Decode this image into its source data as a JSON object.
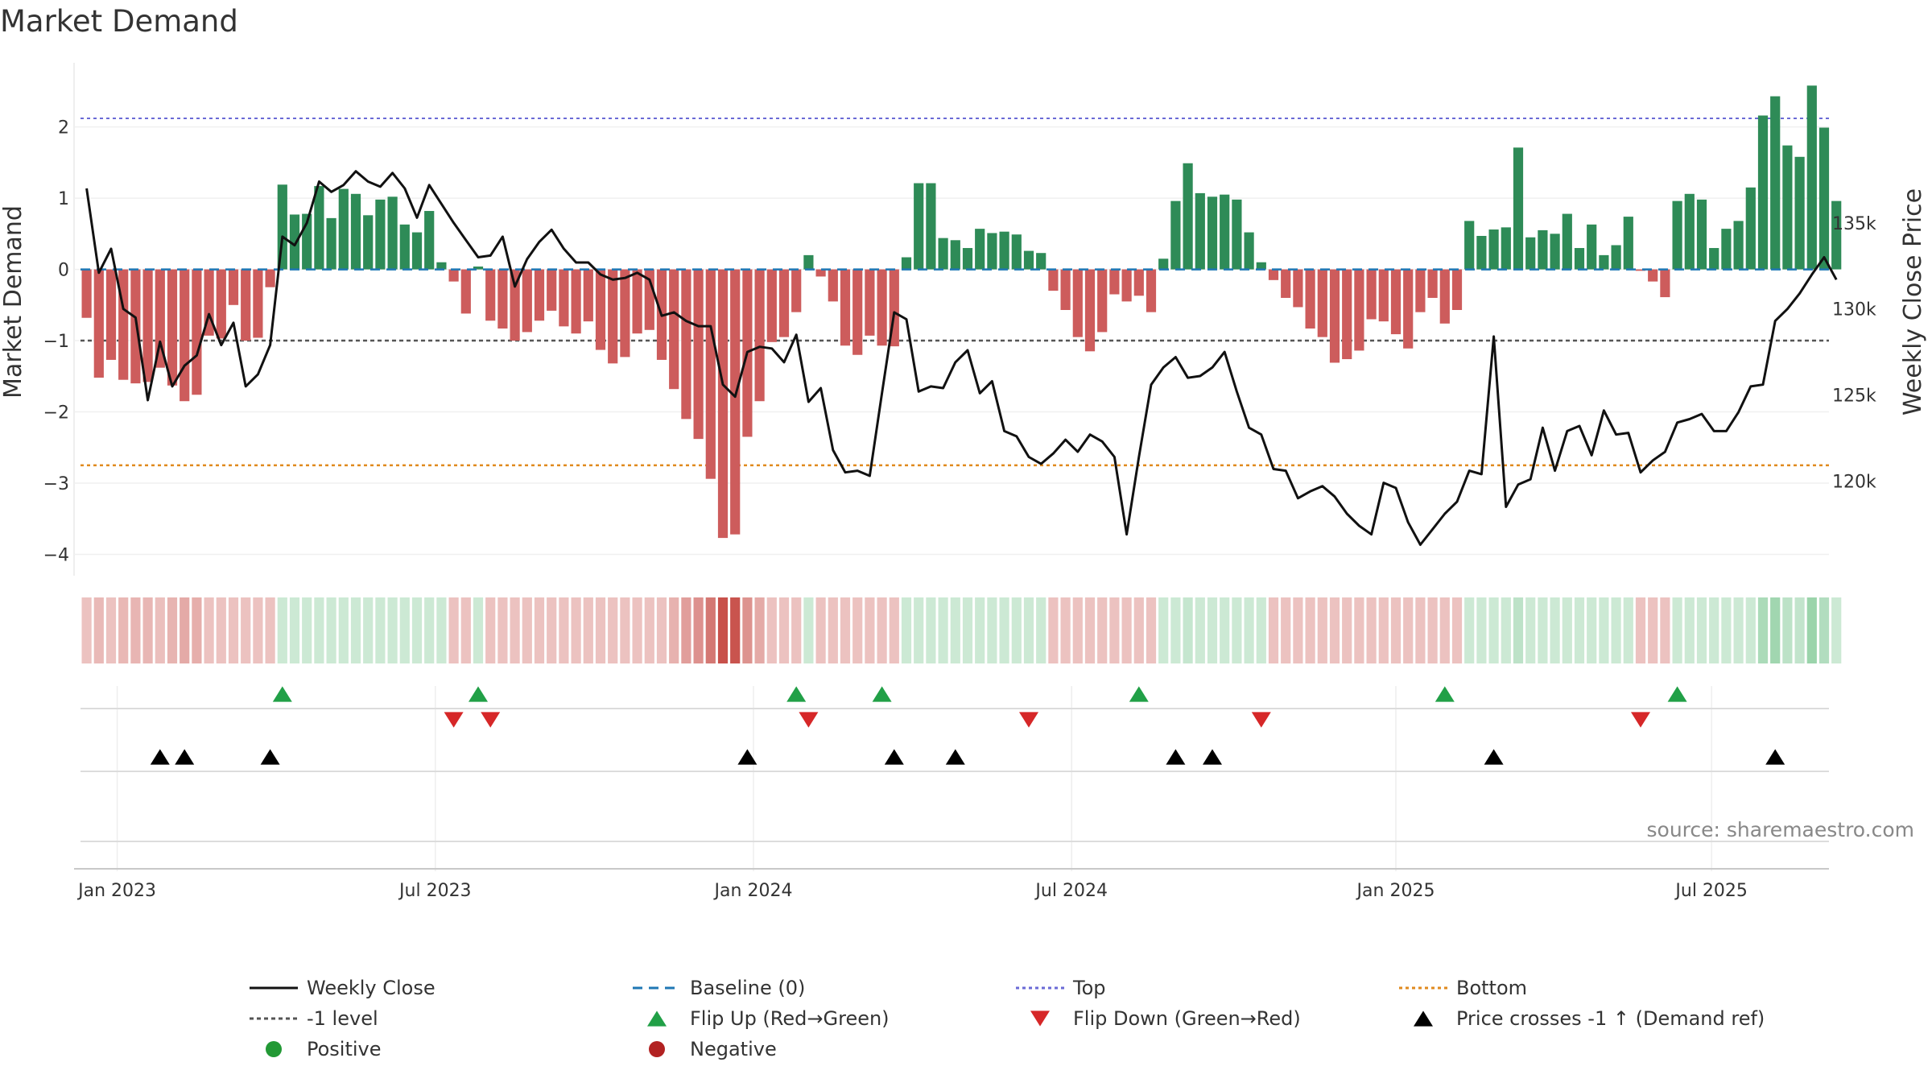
{
  "chart_data": {
    "type": "bar+line",
    "title": "Market Demand",
    "ylabel_left": "Market Demand",
    "ylabel_right": "Weekly Close Price",
    "source": "source: sharemaestro.com",
    "left_axis": {
      "ylim": [
        -4.3,
        2.9
      ],
      "ticks": [
        {
          "v": 2,
          "label": "2"
        },
        {
          "v": 1,
          "label": "1"
        },
        {
          "v": 0,
          "label": "0"
        },
        {
          "v": -1,
          "label": "−1"
        },
        {
          "v": -2,
          "label": "−2"
        },
        {
          "v": -3,
          "label": "−3"
        },
        {
          "v": -4,
          "label": "−4"
        }
      ]
    },
    "right_axis": {
      "ylim": [
        114500,
        144300
      ],
      "ticks": [
        {
          "v": 135000,
          "label": "135k"
        },
        {
          "v": 130000,
          "label": "130k"
        },
        {
          "v": 125000,
          "label": "125k"
        },
        {
          "v": 120000,
          "label": "120k"
        }
      ]
    },
    "x_ticks": [
      {
        "w": 3,
        "label": "Jan 2023"
      },
      {
        "w": 29,
        "label": "Jul 2023"
      },
      {
        "w": 55,
        "label": "Jan 2024"
      },
      {
        "w": 81,
        "label": "Jul 2024"
      },
      {
        "w": 107.5,
        "label": "Jan 2025"
      },
      {
        "w": 133.3,
        "label": "Jul 2025"
      }
    ],
    "reference_lines": {
      "top": 2.12,
      "bottom": -2.75,
      "minus_one": -1,
      "baseline": 0
    },
    "market_demand": [
      -0.68,
      -1.52,
      -1.27,
      -1.55,
      -1.6,
      -1.58,
      -1.38,
      -1.63,
      -1.85,
      -1.76,
      -0.93,
      -0.97,
      -0.5,
      -1.0,
      -0.96,
      -0.25,
      1.19,
      0.77,
      0.78,
      1.17,
      0.72,
      1.13,
      1.06,
      0.76,
      0.98,
      1.02,
      0.63,
      0.52,
      0.82,
      0.1,
      -0.17,
      -0.62,
      0.04,
      -0.72,
      -0.83,
      -1.0,
      -0.88,
      -0.72,
      -0.58,
      -0.8,
      -0.9,
      -0.73,
      -1.13,
      -1.32,
      -1.23,
      -0.9,
      -0.85,
      -1.27,
      -1.68,
      -2.1,
      -2.38,
      -2.94,
      -3.77,
      -3.72,
      -2.35,
      -1.85,
      -1.02,
      -0.95,
      -0.6,
      0.2,
      -0.1,
      -0.45,
      -1.07,
      -1.2,
      -0.93,
      -1.07,
      -1.08,
      0.17,
      1.21,
      1.21,
      0.44,
      0.41,
      0.3,
      0.57,
      0.51,
      0.53,
      0.49,
      0.26,
      0.23,
      -0.3,
      -0.57,
      -0.95,
      -1.15,
      -0.88,
      -0.35,
      -0.45,
      -0.37,
      -0.6,
      0.15,
      0.96,
      1.49,
      1.07,
      1.02,
      1.05,
      0.98,
      0.52,
      0.1,
      -0.15,
      -0.4,
      -0.53,
      -0.83,
      -0.95,
      -1.31,
      -1.26,
      -1.14,
      -0.7,
      -0.73,
      -0.91,
      -1.11,
      -0.6,
      -0.4,
      -0.76,
      -0.57,
      0.68,
      0.47,
      0.56,
      0.59,
      1.71,
      0.45,
      0.55,
      0.5,
      0.78,
      0.3,
      0.63,
      0.2,
      0.34,
      0.74,
      -0.02,
      -0.17,
      -0.39,
      0.96,
      1.06,
      0.98,
      0.3,
      0.57,
      0.68,
      1.15,
      2.16,
      2.43,
      1.74,
      1.58,
      2.58,
      1.99,
      0.96
    ],
    "weekly_close": [
      137,
      132.1,
      133.5,
      130,
      129.5,
      124.7,
      128.1,
      125.5,
      126.7,
      127.3,
      129.7,
      127.9,
      129.2,
      125.5,
      126.2,
      127.9,
      134.2,
      133.7,
      135,
      137.4,
      136.8,
      137.2,
      138,
      137.4,
      137.1,
      137.9,
      137,
      135.3,
      137.2,
      136.1,
      135,
      134,
      133,
      133.1,
      134.2,
      131.3,
      132.9,
      133.9,
      134.6,
      133.5,
      132.7,
      132.7,
      132,
      131.7,
      131.8,
      132.1,
      131.7,
      129.6,
      129.8,
      129.3,
      129.0,
      129.0,
      125.6,
      124.9,
      127.5,
      127.8,
      127.7,
      126.9,
      128.5,
      124.6,
      125.4,
      121.8,
      120.5,
      120.6,
      120.3,
      125.1,
      129.8,
      129.4,
      125.2,
      125.5,
      125.4,
      126.9,
      127.6,
      125.1,
      125.8,
      122.9,
      122.6,
      121.4,
      121.0,
      121.6,
      122.4,
      121.7,
      122.7,
      122.3,
      121.4,
      116.9,
      121.4,
      125.6,
      126.6,
      127.2,
      126.0,
      126.1,
      126.6,
      127.5,
      125.2,
      123.1,
      122.7,
      120.7,
      120.6,
      119.0,
      119.4,
      119.7,
      119.1,
      118.1,
      117.4,
      116.9,
      119.9,
      119.6,
      117.6,
      116.3,
      117.2,
      118.1,
      118.8,
      120.6,
      120.4,
      128.4,
      118.5,
      119.8,
      120.1,
      123.1,
      120.6,
      122.9,
      123.2,
      121.5,
      124.1,
      122.7,
      122.8,
      120.5,
      121.2,
      121.7,
      123.4,
      123.6,
      123.9,
      122.9,
      122.9,
      124.0,
      125.5,
      125.6,
      129.3,
      130.0,
      130.9,
      132.0,
      133.0,
      131.7
    ],
    "flip_up_weeks": [
      16,
      32,
      58,
      65,
      86,
      111,
      130
    ],
    "flip_down_weeks": [
      30,
      33,
      59,
      77,
      96,
      127
    ],
    "price_cross_weeks": [
      6,
      8,
      15,
      54,
      66,
      71,
      89,
      92,
      115,
      138
    ],
    "legend": [
      {
        "key": "close",
        "label": "Weekly Close",
        "color": "#111111"
      },
      {
        "key": "baseline",
        "label": "Baseline (0)",
        "color": "#1f77b4"
      },
      {
        "key": "top",
        "label": "Top",
        "color": "#6a6ad6"
      },
      {
        "key": "bottom",
        "label": "Bottom",
        "color": "#e08a1e"
      },
      {
        "key": "minus1",
        "label": "-1 level",
        "color": "#555555"
      },
      {
        "key": "flipup",
        "label": "Flip Up (Red→Green)",
        "color": "#21a047"
      },
      {
        "key": "flipdown",
        "label": "Flip Down (Green→Red)",
        "color": "#d62728"
      },
      {
        "key": "cross",
        "label": "Price crosses -1 ↑ (Demand ref)",
        "color": "#000000"
      },
      {
        "key": "pos",
        "label": "Positive",
        "color": "#229935"
      },
      {
        "key": "neg",
        "label": "Negative",
        "color": "#b22222"
      }
    ],
    "colors": {
      "positive_bar": "#2e8b57",
      "negative_bar": "#cd5c5c",
      "heat_positive": "#6cbf84",
      "heat_negative": "#c8504a"
    }
  }
}
